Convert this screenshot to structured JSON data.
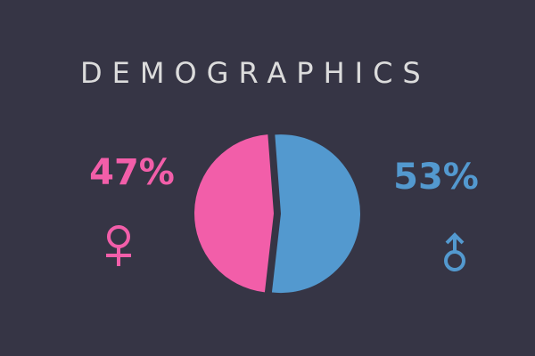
{
  "chart_data": {
    "type": "pie",
    "title": "DEMOGRAPHICS",
    "values": [
      47,
      53
    ],
    "value_labels": [
      "47%",
      "53%"
    ],
    "colors": [
      "#f25ea9",
      "#5399cf"
    ]
  }
}
